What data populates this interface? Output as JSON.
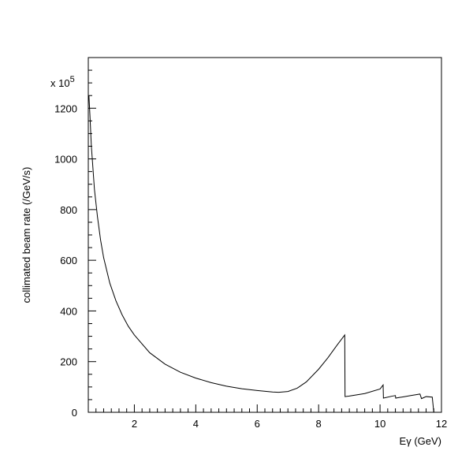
{
  "chart_data": {
    "type": "line",
    "title": "",
    "xlabel": "Eγ (GeV)",
    "ylabel": "collimated beam rate (/GeV/s)",
    "y_multiplier_label": "x 10",
    "y_multiplier_exponent": "5",
    "xlim": [
      0.5,
      12
    ],
    "ylim": [
      0,
      1400
    ],
    "x_ticks": [
      2,
      4,
      6,
      8,
      10,
      12
    ],
    "x_tick_labels": [
      "2",
      "4",
      "6",
      "8",
      "10",
      "12"
    ],
    "y_ticks": [
      0,
      200,
      400,
      600,
      800,
      1000,
      1200
    ],
    "y_tick_labels": [
      "0",
      "200",
      "400",
      "600",
      "800",
      "1000",
      "1200"
    ],
    "grid": false,
    "series": [
      {
        "color": "#000000",
        "x": [
          0.52,
          0.55,
          0.6,
          0.7,
          0.8,
          0.9,
          1.0,
          1.2,
          1.4,
          1.6,
          1.8,
          2.0,
          2.5,
          3.0,
          3.5,
          4.0,
          4.5,
          5.0,
          5.5,
          6.0,
          6.5,
          6.7,
          7.0,
          7.3,
          7.6,
          8.0,
          8.3,
          8.6,
          8.85,
          8.86,
          9.0,
          9.5,
          10.0,
          10.1,
          10.11,
          10.4,
          10.5,
          10.51,
          10.8,
          11.0,
          11.2,
          11.3,
          11.35,
          11.5,
          11.7,
          11.75
        ],
        "y": [
          1250,
          1180,
          1050,
          880,
          770,
          680,
          610,
          510,
          440,
          385,
          340,
          305,
          235,
          190,
          158,
          135,
          117,
          103,
          93,
          86,
          80,
          79,
          82,
          95,
          120,
          170,
          215,
          265,
          305,
          62,
          64,
          74,
          92,
          108,
          56,
          64,
          66,
          56,
          62,
          66,
          70,
          72,
          54,
          62,
          60,
          0
        ]
      }
    ]
  }
}
